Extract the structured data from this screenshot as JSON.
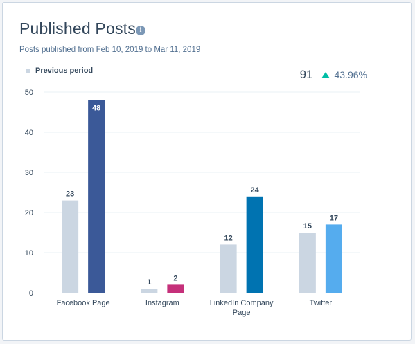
{
  "title": "Published Posts",
  "subtitle": "Posts published from Feb 10, 2019 to Mar 11, 2019",
  "info_icon": "info-icon",
  "legend": {
    "label": "Previous period",
    "color": "#cbd6e2"
  },
  "summary": {
    "total": "91",
    "change": "43.96%",
    "trend_icon": "triangle-up-icon",
    "trend_color": "#00bda5"
  },
  "chart_data": {
    "type": "bar",
    "categories": [
      "Facebook Page",
      "Instagram",
      "LinkedIn Company Page",
      "Twitter"
    ],
    "series": [
      {
        "name": "Previous period",
        "values": [
          23,
          1,
          12,
          15
        ],
        "colors": [
          "#cbd6e2",
          "#cbd6e2",
          "#cbd6e2",
          "#cbd6e2"
        ]
      },
      {
        "values": [
          48,
          2,
          24,
          17
        ],
        "colors": [
          "#3b5998",
          "#c5307a",
          "#0073b1",
          "#55acee"
        ]
      }
    ],
    "yticks": [
      0,
      10,
      20,
      30,
      40,
      50
    ],
    "ylim": [
      0,
      50
    ],
    "grid": true,
    "legend_position": "top-left"
  }
}
